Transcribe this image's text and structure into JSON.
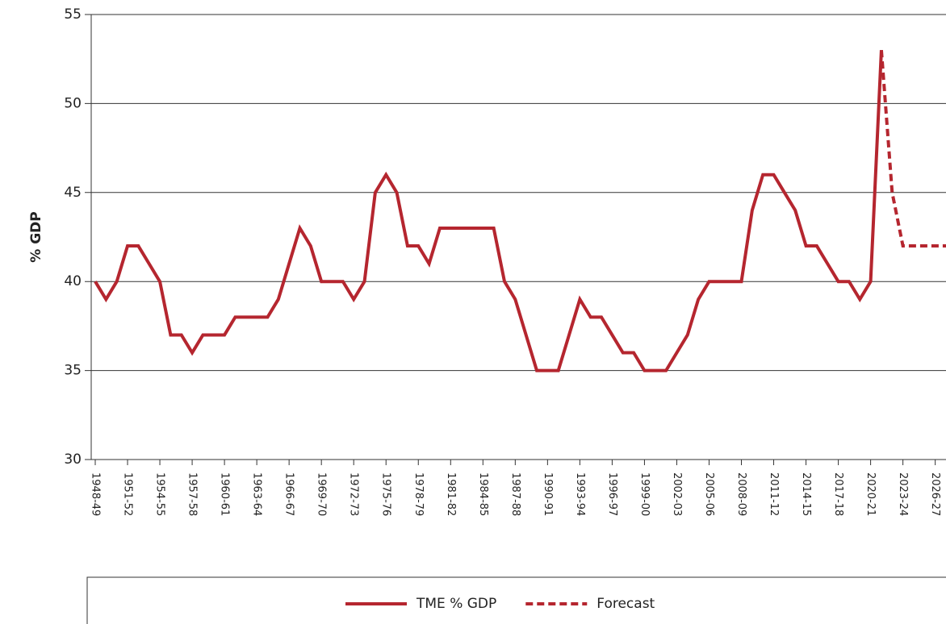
{
  "chart_data": {
    "type": "line",
    "y_label": "% GDP",
    "categories": [
      "1948-49",
      null,
      null,
      "1951-52",
      null,
      null,
      "1954-55",
      null,
      null,
      "1957-58",
      null,
      null,
      "1960-61",
      null,
      null,
      "1963-64",
      null,
      null,
      "1966-67",
      null,
      null,
      "1969-70",
      null,
      null,
      "1972-73",
      null,
      null,
      "1975-76",
      null,
      null,
      "1978-79",
      null,
      null,
      "1981-82",
      null,
      null,
      "1984-85",
      null,
      null,
      "1987-88",
      null,
      null,
      "1990-91",
      null,
      null,
      "1993-94",
      null,
      null,
      "1996-97",
      null,
      null,
      "1999-00",
      null,
      null,
      "2002-03",
      null,
      null,
      "2005-06",
      null,
      null,
      "2008-09",
      null,
      null,
      "2011-12",
      null,
      null,
      "2014-15",
      null,
      null,
      "2017-18",
      null,
      null,
      "2020-21",
      null,
      null,
      "2023-24",
      null,
      null,
      "2026-27",
      null
    ],
    "series": [
      {
        "name": "TME % GDP",
        "color": "#b5262f",
        "dash": false,
        "values": [
          40,
          39,
          40,
          42,
          42,
          41,
          40,
          37,
          37,
          36,
          37,
          37,
          37,
          38,
          38,
          38,
          38,
          39,
          41,
          43,
          42,
          40,
          40,
          40,
          39,
          40,
          45,
          46,
          45,
          42,
          42,
          41,
          43,
          43,
          43,
          43,
          43,
          43,
          40,
          39,
          37,
          35,
          35,
          35,
          37,
          39,
          38,
          38,
          37,
          36,
          36,
          35,
          35,
          35,
          36,
          37,
          39,
          40,
          40,
          40,
          40,
          44,
          46,
          46,
          45,
          44,
          42,
          42,
          41,
          40,
          40,
          39,
          40,
          53,
          null,
          null,
          null,
          null,
          null,
          null
        ]
      },
      {
        "name": "Forecast",
        "color": "#b5262f",
        "dash": true,
        "values": [
          null,
          null,
          null,
          null,
          null,
          null,
          null,
          null,
          null,
          null,
          null,
          null,
          null,
          null,
          null,
          null,
          null,
          null,
          null,
          null,
          null,
          null,
          null,
          null,
          null,
          null,
          null,
          null,
          null,
          null,
          null,
          null,
          null,
          null,
          null,
          null,
          null,
          null,
          null,
          null,
          null,
          null,
          null,
          null,
          null,
          null,
          null,
          null,
          null,
          null,
          null,
          null,
          null,
          null,
          null,
          null,
          null,
          null,
          null,
          null,
          null,
          null,
          null,
          null,
          null,
          null,
          null,
          null,
          null,
          null,
          null,
          null,
          null,
          53,
          45,
          42,
          42,
          42,
          42,
          42
        ]
      }
    ],
    "ylim": [
      30,
      55
    ],
    "yticks": [
      30,
      35,
      40,
      45,
      50,
      55
    ],
    "grid": true
  }
}
